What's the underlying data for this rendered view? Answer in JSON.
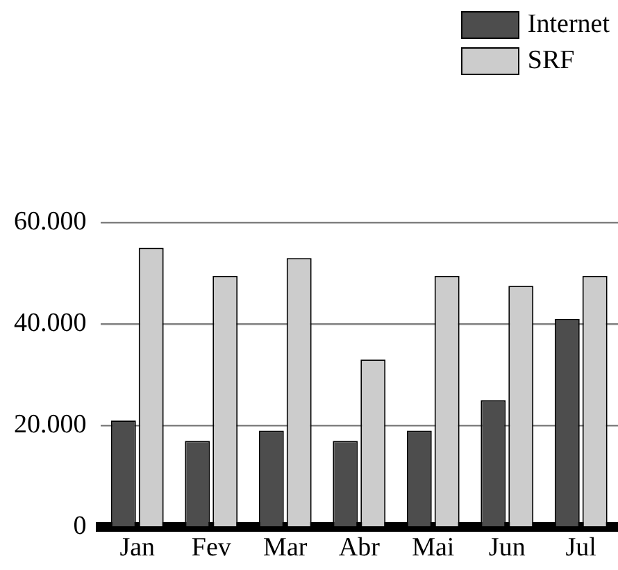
{
  "chart_data": {
    "type": "bar",
    "categories": [
      "Jan",
      "Fev",
      "Mar",
      "Abr",
      "Mai",
      "Jun",
      "Jul"
    ],
    "series": [
      {
        "name": "Internet",
        "color": "#4d4d4d",
        "values": [
          21000,
          17000,
          19000,
          17000,
          19000,
          25000,
          41000
        ]
      },
      {
        "name": "SRF",
        "color": "#cccccc",
        "values": [
          55000,
          49500,
          53000,
          33000,
          49500,
          47500,
          49500
        ]
      }
    ],
    "ylim": [
      0,
      60000
    ],
    "yticks": [
      {
        "value": 0,
        "label": "0"
      },
      {
        "value": 20000,
        "label": "20.000"
      },
      {
        "value": 40000,
        "label": "40.000"
      },
      {
        "value": 60000,
        "label": "60.000"
      }
    ],
    "grid": "y",
    "legend": "top right"
  }
}
